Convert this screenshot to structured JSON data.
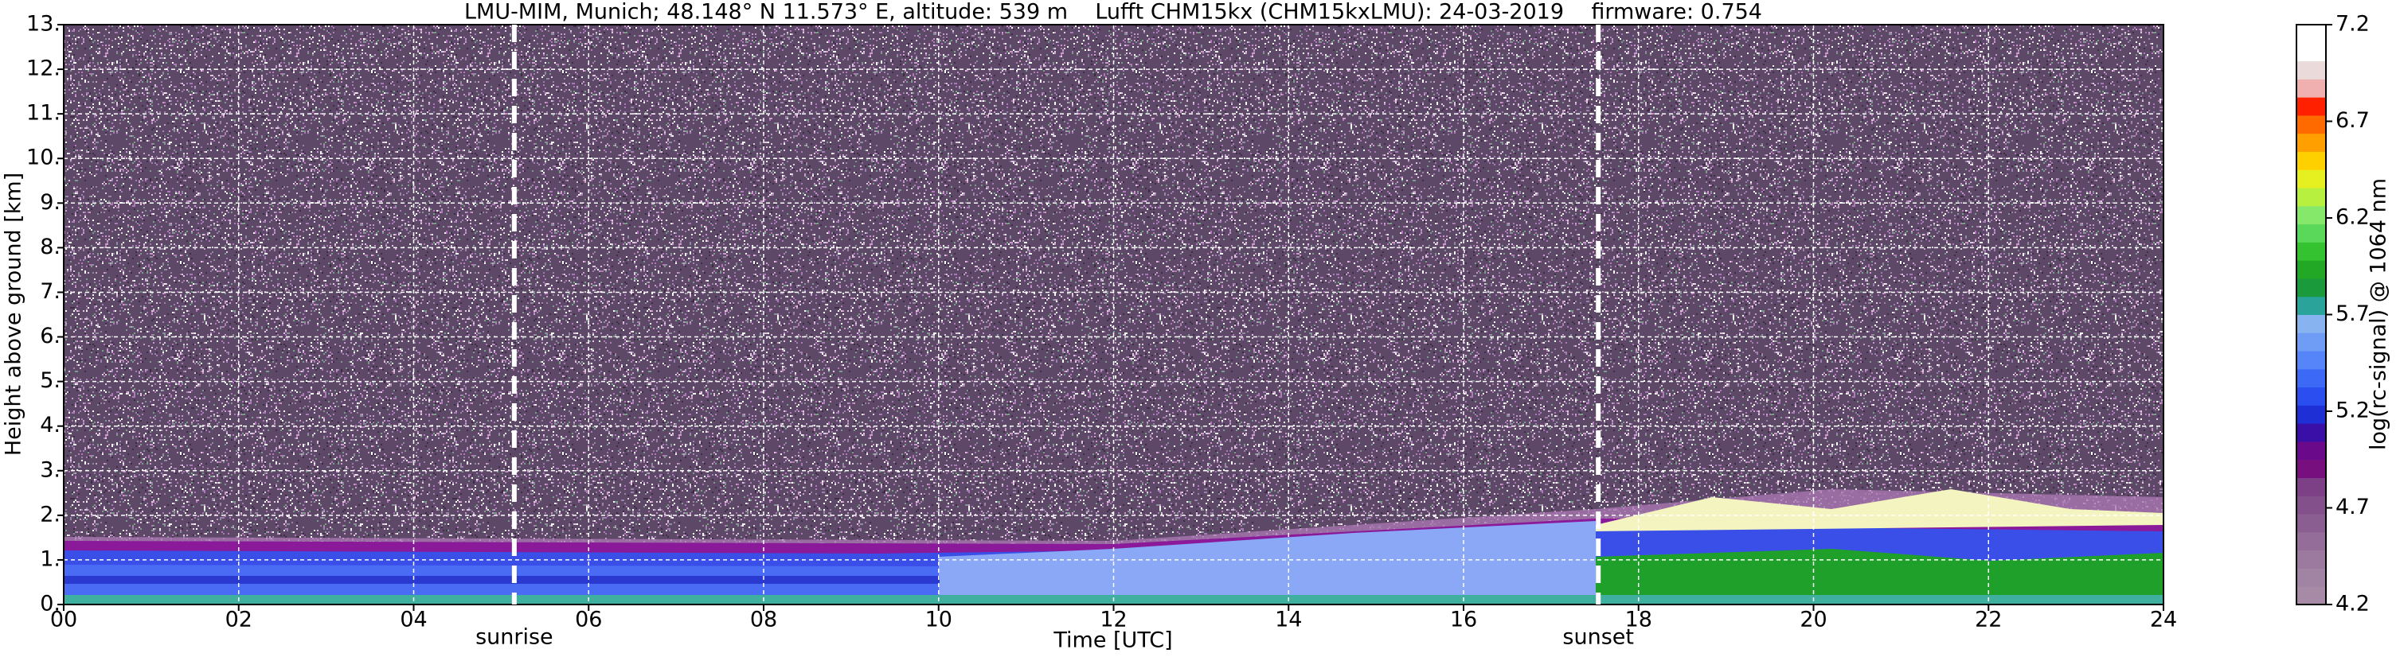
{
  "chart_data": {
    "type": "heatmap",
    "title": "LMU-MIM, Munich; 48.148° N 11.573° E, altitude: 539 m    Lufft CHM15kx (CHM15kxLMU): 24-03-2019    firmware: 0.754",
    "xlabel": "Time [UTC]",
    "ylabel": "Height above ground [km]",
    "xlim": [
      0,
      24
    ],
    "ylim": [
      0,
      13
    ],
    "xticks": [
      {
        "value": 0,
        "label": "00"
      },
      {
        "value": 2,
        "label": "02"
      },
      {
        "value": 4,
        "label": "04"
      },
      {
        "value": 6,
        "label": "06"
      },
      {
        "value": 8,
        "label": "08"
      },
      {
        "value": 10,
        "label": "10"
      },
      {
        "value": 12,
        "label": "12"
      },
      {
        "value": 14,
        "label": "14"
      },
      {
        "value": 16,
        "label": "16"
      },
      {
        "value": 18,
        "label": "18"
      },
      {
        "value": 20,
        "label": "20"
      },
      {
        "value": 22,
        "label": "22"
      },
      {
        "value": 24,
        "label": "24"
      }
    ],
    "yticks": [
      {
        "value": 0,
        "label": "0."
      },
      {
        "value": 1,
        "label": "1."
      },
      {
        "value": 2,
        "label": "2."
      },
      {
        "value": 3,
        "label": "3."
      },
      {
        "value": 4,
        "label": "4."
      },
      {
        "value": 5,
        "label": "5."
      },
      {
        "value": 6,
        "label": "6."
      },
      {
        "value": 7,
        "label": "7."
      },
      {
        "value": 8,
        "label": "8."
      },
      {
        "value": 9,
        "label": "9."
      },
      {
        "value": 10,
        "label": "10."
      },
      {
        "value": 11,
        "label": "11."
      },
      {
        "value": 12,
        "label": "12."
      },
      {
        "value": 13,
        "label": "13."
      }
    ],
    "grid": true,
    "annotations": [
      {
        "label": "sunrise",
        "x": 5.15
      },
      {
        "label": "sunset",
        "x": 17.54
      }
    ],
    "colorbar": {
      "label": "log(rc-signal) @ 1064 nm",
      "lim": [
        4.2,
        7.2
      ],
      "ticks": [
        4.2,
        4.7,
        5.2,
        5.7,
        6.2,
        6.7,
        7.2
      ],
      "colors": [
        "#a68aa6",
        "#a184a3",
        "#9c7a9f",
        "#946d98",
        "#8b5e91",
        "#84508b",
        "#7d3f86",
        "#770f7f",
        "#6a0a8a",
        "#3a0fa8",
        "#1f2fd6",
        "#2a4ef0",
        "#3c6af7",
        "#5585f8",
        "#6f9cf5",
        "#87b4f0",
        "#2aa39a",
        "#1a9a3a",
        "#22a825",
        "#35c230",
        "#5ad85a",
        "#86e86a",
        "#b8f040",
        "#e6f020",
        "#ffd000",
        "#ffa000",
        "#ff6a00",
        "#ff2000",
        "#f0b0b0",
        "#eadada",
        "#ffffff",
        "#ffffff"
      ]
    }
  }
}
